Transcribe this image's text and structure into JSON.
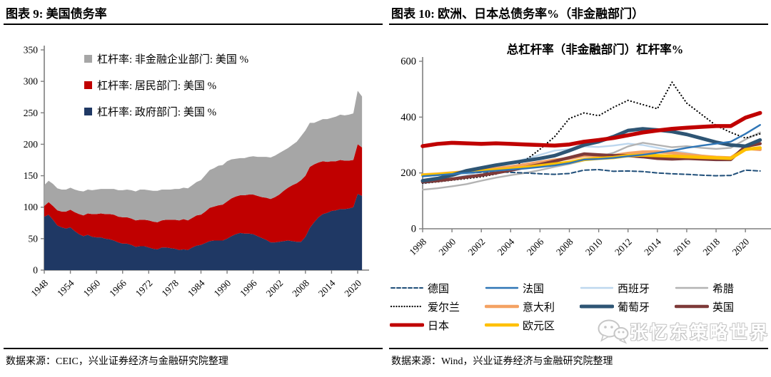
{
  "page": {
    "background": "#ffffff"
  },
  "left_panel": {
    "title": "图表 9: 美国债务率",
    "source": "数据来源：CEIC，兴业证券经济与金融研究院整理"
  },
  "right_panel": {
    "title": "图表 10: 欧洲、日本总债务率%（非金融部门）",
    "source": "数据来源：Wind，兴业证券经济与金融研究院整理",
    "watermark": "张忆东策略世界",
    "watermark_icon": "wechat-chat-bubbles-icon"
  },
  "chart_data": [
    {
      "id": "us-debt",
      "type": "area",
      "stacked": true,
      "title": "",
      "ylim": [
        0,
        350
      ],
      "yticks": [
        0,
        50,
        100,
        150,
        200,
        250,
        300,
        350
      ],
      "xticks": [
        1948,
        1954,
        1960,
        1966,
        1972,
        1978,
        1984,
        1990,
        1996,
        2002,
        2008,
        2014,
        2020
      ],
      "xmax": 2021.8,
      "legend_position": "top-inside",
      "grid": false,
      "x": [
        1948,
        1949,
        1950,
        1951,
        1952,
        1953,
        1954,
        1955,
        1956,
        1957,
        1958,
        1959,
        1960,
        1961,
        1962,
        1963,
        1964,
        1965,
        1966,
        1967,
        1968,
        1969,
        1970,
        1971,
        1972,
        1973,
        1974,
        1975,
        1976,
        1977,
        1978,
        1979,
        1980,
        1981,
        1982,
        1983,
        1984,
        1985,
        1986,
        1987,
        1988,
        1989,
        1990,
        1991,
        1992,
        1993,
        1994,
        1995,
        1996,
        1997,
        1998,
        1999,
        2000,
        2001,
        2002,
        2003,
        2004,
        2005,
        2006,
        2007,
        2008,
        2009,
        2010,
        2011,
        2012,
        2013,
        2014,
        2015,
        2016,
        2017,
        2018,
        2019,
        2020,
        2021
      ],
      "series": [
        {
          "key": "government",
          "name": "杠杆率: 政府部门: 美国 %",
          "color": "#1F3864",
          "values": [
            85,
            88,
            80,
            71,
            68,
            66,
            68,
            62,
            57,
            54,
            56,
            53,
            52,
            52,
            50,
            49,
            47,
            44,
            42,
            42,
            40,
            37,
            38,
            38,
            36,
            34,
            33,
            36,
            36,
            35,
            34,
            32,
            33,
            32,
            36,
            39,
            40,
            43,
            46,
            47,
            47,
            47,
            50,
            54,
            57,
            59,
            58,
            58,
            57,
            54,
            51,
            48,
            44,
            44,
            45,
            46,
            47,
            46,
            45,
            45,
            53,
            67,
            76,
            84,
            89,
            91,
            94,
            95,
            97,
            97,
            98,
            100,
            121,
            118
          ]
        },
        {
          "key": "households",
          "name": "杠杆率: 居民部门: 美国 %",
          "color": "#C00000",
          "values": [
            17,
            20,
            22,
            24,
            25,
            27,
            28,
            30,
            32,
            33,
            34,
            36,
            37,
            38,
            39,
            40,
            41,
            41,
            42,
            42,
            42,
            42,
            42,
            42,
            43,
            43,
            43,
            43,
            44,
            45,
            46,
            47,
            48,
            47,
            47,
            48,
            48,
            50,
            53,
            54,
            56,
            57,
            59,
            60,
            60,
            60,
            61,
            62,
            63,
            64,
            65,
            67,
            69,
            72,
            75,
            80,
            84,
            89,
            93,
            98,
            97,
            97,
            92,
            87,
            84,
            81,
            79,
            78,
            78,
            77,
            76,
            75,
            79,
            77
          ]
        },
        {
          "key": "nonfinancial-corporate",
          "name": "杠杆率: 非金融企业部门: 美国 %",
          "color": "#A6A6A6",
          "values": [
            33,
            34,
            35,
            35,
            35,
            35,
            35,
            36,
            37,
            38,
            38,
            38,
            39,
            39,
            40,
            40,
            41,
            42,
            43,
            44,
            45,
            46,
            48,
            48,
            48,
            49,
            50,
            49,
            48,
            48,
            49,
            50,
            50,
            51,
            52,
            53,
            55,
            58,
            60,
            61,
            63,
            63,
            64,
            62,
            60,
            59,
            59,
            60,
            61,
            62,
            64,
            65,
            66,
            66,
            66,
            64,
            63,
            64,
            66,
            70,
            72,
            70,
            66,
            66,
            67,
            68,
            69,
            71,
            72,
            72,
            73,
            74,
            85,
            81
          ]
        }
      ]
    },
    {
      "id": "europe-japan",
      "type": "line",
      "title": "总杠杆率（非金融部门）杠杆率%",
      "ylim": [
        0,
        600
      ],
      "yticks": [
        0,
        200,
        400,
        600
      ],
      "xticks": [
        1998,
        2000,
        2002,
        2004,
        2006,
        2008,
        2010,
        2012,
        2014,
        2016,
        2018,
        2020
      ],
      "xmax": 2021.5,
      "legend_position": "bottom",
      "grid": false,
      "x": [
        1998,
        1999,
        2000,
        2001,
        2002,
        2003,
        2004,
        2005,
        2006,
        2007,
        2008,
        2009,
        2010,
        2011,
        2012,
        2013,
        2014,
        2015,
        2016,
        2017,
        2018,
        2019,
        2020,
        2021
      ],
      "series": [
        {
          "key": "germany",
          "name": "德国",
          "color": "#1F4E79",
          "dash": "dashed",
          "width": 2,
          "z": 3,
          "values": [
            190,
            194,
            197,
            200,
            202,
            204,
            202,
            200,
            197,
            195,
            198,
            210,
            212,
            206,
            207,
            205,
            200,
            197,
            195,
            192,
            190,
            191,
            210,
            207
          ]
        },
        {
          "key": "france",
          "name": "法国",
          "color": "#2E75B6",
          "dash": "solid",
          "width": 2.4,
          "z": 9,
          "values": [
            188,
            192,
            196,
            200,
            204,
            208,
            212,
            216,
            221,
            227,
            235,
            248,
            250,
            254,
            260,
            265,
            272,
            280,
            290,
            298,
            305,
            312,
            340,
            372
          ]
        },
        {
          "key": "spain",
          "name": "西班牙",
          "color": "#BDD7EE",
          "dash": "solid",
          "width": 2.4,
          "z": 1,
          "values": [
            162,
            170,
            180,
            192,
            205,
            220,
            235,
            250,
            265,
            280,
            285,
            295,
            293,
            298,
            305,
            300,
            290,
            280,
            272,
            263,
            256,
            255,
            290,
            288
          ]
        },
        {
          "key": "greece",
          "name": "希腊",
          "color": "#B3B3B3",
          "dash": "solid",
          "width": 2.4,
          "z": 2,
          "values": [
            140,
            145,
            152,
            160,
            172,
            183,
            192,
            200,
            210,
            222,
            232,
            245,
            258,
            272,
            295,
            308,
            300,
            292,
            296,
            290,
            286,
            290,
            320,
            345
          ]
        },
        {
          "key": "ireland",
          "name": "爱尔兰",
          "color": "#000000",
          "dash": "dotted",
          "width": 2.2,
          "z": 4,
          "values": [
            163,
            168,
            174,
            180,
            186,
            196,
            215,
            245,
            285,
            330,
            395,
            415,
            405,
            435,
            460,
            445,
            430,
            525,
            450,
            410,
            370,
            345,
            325,
            340
          ]
        },
        {
          "key": "italy",
          "name": "意大利",
          "color": "#F4A263",
          "dash": "solid",
          "width": 4.5,
          "z": 5,
          "values": [
            193,
            196,
            200,
            205,
            210,
            216,
            222,
            230,
            238,
            246,
            252,
            262,
            262,
            262,
            270,
            275,
            276,
            272,
            266,
            260,
            256,
            254,
            288,
            284
          ]
        },
        {
          "key": "portugal",
          "name": "葡萄牙",
          "color": "#2E5574",
          "dash": "solid",
          "width": 5,
          "z": 8,
          "values": [
            172,
            180,
            192,
            208,
            218,
            228,
            236,
            244,
            252,
            262,
            280,
            300,
            312,
            330,
            352,
            358,
            354,
            348,
            338,
            324,
            310,
            300,
            296,
            318
          ]
        },
        {
          "key": "uk",
          "name": "英国",
          "color": "#7E3A39",
          "dash": "solid",
          "width": 4.5,
          "z": 6,
          "values": [
            168,
            172,
            178,
            185,
            192,
            200,
            210,
            220,
            230,
            242,
            255,
            268,
            265,
            262,
            262,
            258,
            252,
            250,
            252,
            250,
            248,
            248,
            295,
            305
          ]
        },
        {
          "key": "japan",
          "name": "日本",
          "color": "#C00000",
          "dash": "solid",
          "width": 5.5,
          "z": 10,
          "values": [
            296,
            304,
            308,
            306,
            304,
            306,
            304,
            302,
            300,
            298,
            302,
            312,
            318,
            325,
            335,
            345,
            352,
            358,
            362,
            365,
            368,
            368,
            398,
            415
          ]
        },
        {
          "key": "eurozone",
          "name": "欧元区",
          "color": "#FFC000",
          "dash": "solid",
          "width": 4.5,
          "z": 7,
          "values": [
            192,
            195,
            199,
            203,
            207,
            211,
            215,
            220,
            226,
            232,
            238,
            248,
            252,
            255,
            262,
            264,
            262,
            260,
            258,
            256,
            254,
            252,
            284,
            290
          ]
        }
      ]
    }
  ]
}
